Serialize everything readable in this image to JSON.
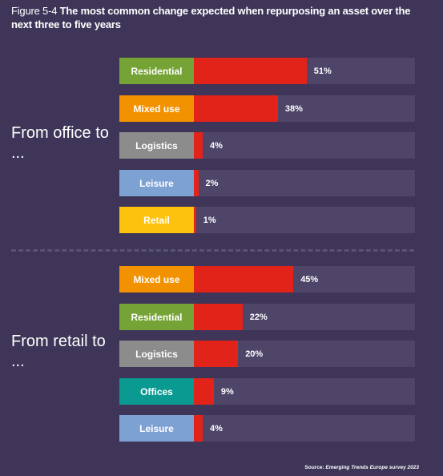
{
  "figure": {
    "number": "Figure 5-4",
    "title": "The most common change expected when repurposing an asset over the next three to five years"
  },
  "colors": {
    "background": "#3e3558",
    "track": "#4e4568",
    "bar": "#e2231a",
    "divider": "#5b5277"
  },
  "chart_data": [
    {
      "type": "bar",
      "orientation": "horizontal",
      "group_label": "From office to ...",
      "categories": [
        "Residential",
        "Mixed use",
        "Logistics",
        "Leisure",
        "Retail"
      ],
      "values": [
        51,
        38,
        4,
        2,
        1
      ],
      "value_labels": [
        "51%",
        "38%",
        "4%",
        "2%",
        "1%"
      ],
      "category_colors": [
        "#76a335",
        "#f39200",
        "#8c8c8c",
        "#7ea1d4",
        "#fdc20e"
      ],
      "xlim": [
        0,
        100
      ]
    },
    {
      "type": "bar",
      "orientation": "horizontal",
      "group_label": "From retail to ...",
      "categories": [
        "Mixed use",
        "Residential",
        "Logistics",
        "Offices",
        "Leisure"
      ],
      "values": [
        45,
        22,
        20,
        9,
        4
      ],
      "value_labels": [
        "45%",
        "22%",
        "20%",
        "9%",
        "4%"
      ],
      "category_colors": [
        "#f39200",
        "#76a335",
        "#8c8c8c",
        "#0b9a92",
        "#7ea1d4"
      ],
      "xlim": [
        0,
        100
      ]
    }
  ],
  "source": {
    "prefix": "Source: ",
    "name": "Emerging Trends Europe survey 2023"
  }
}
